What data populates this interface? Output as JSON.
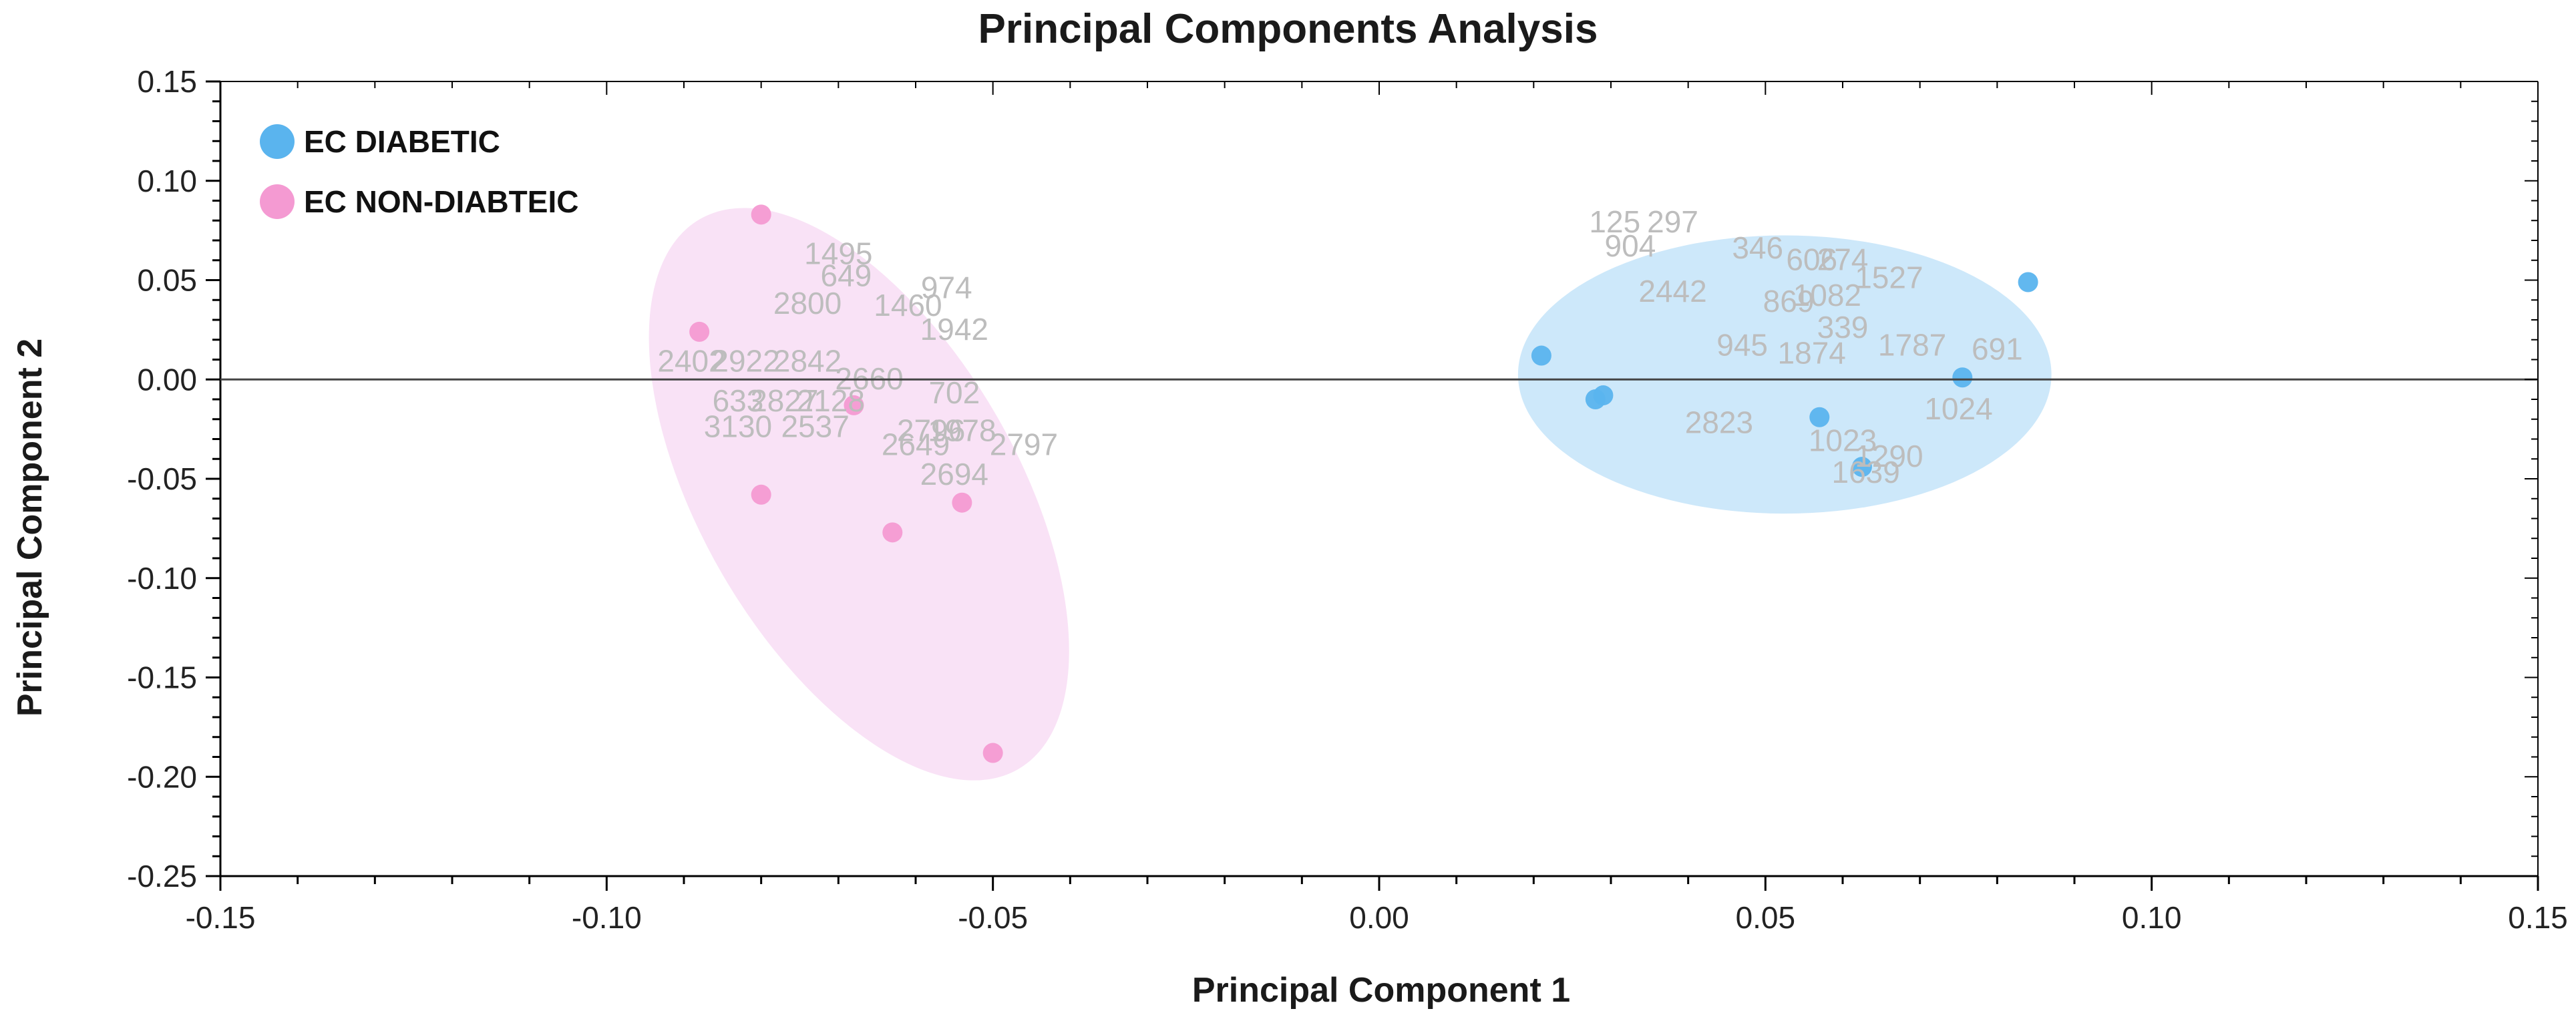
{
  "chart_data": {
    "type": "scatter",
    "title": "Principal Components Analysis",
    "xlabel": "Principal Component 1",
    "ylabel": "Principal Component 2",
    "xlim": [
      -0.15,
      0.15
    ],
    "ylim": [
      -0.25,
      0.15
    ],
    "x_ticks": [
      "-0.15",
      "-0.10",
      "-0.05",
      "0.00",
      "0.05",
      "0.10",
      "0.15"
    ],
    "y_ticks": [
      "0.15",
      "0.10",
      "0.05",
      "0.00",
      "-0.05",
      "-0.10",
      "-0.15",
      "-0.20",
      "-0.25"
    ],
    "grid": false,
    "legend_position": "top-left",
    "zero_line": true,
    "series": [
      {
        "name": "EC DIABETIC",
        "color": "#5ab4ee",
        "ellipse_color": "#cde8fa",
        "points": [
          {
            "x": 0.021,
            "y": 0.012
          },
          {
            "x": 0.028,
            "y": -0.01
          },
          {
            "x": 0.029,
            "y": -0.008
          },
          {
            "x": 0.057,
            "y": -0.019
          },
          {
            "x": 0.0625,
            "y": -0.044
          },
          {
            "x": 0.0755,
            "y": 0.001
          },
          {
            "x": 0.084,
            "y": 0.049
          }
        ]
      },
      {
        "name": "EC NON-DIABTEIC",
        "color": "#f49ad2",
        "ellipse_color": "#f9e2f6",
        "points": [
          {
            "x": -0.08,
            "y": 0.083
          },
          {
            "x": -0.088,
            "y": 0.024
          },
          {
            "x": -0.068,
            "y": -0.013
          },
          {
            "x": -0.08,
            "y": -0.058
          },
          {
            "x": -0.063,
            "y": -0.077
          },
          {
            "x": -0.054,
            "y": -0.062
          },
          {
            "x": -0.05,
            "y": -0.188
          }
        ]
      }
    ],
    "point_labels": [
      {
        "text": "1495",
        "x": -0.07,
        "y": 0.058
      },
      {
        "text": "649",
        "x": -0.069,
        "y": 0.047
      },
      {
        "text": "974",
        "x": -0.056,
        "y": 0.041
      },
      {
        "text": "1460",
        "x": -0.061,
        "y": 0.032
      },
      {
        "text": "1942",
        "x": -0.055,
        "y": 0.02
      },
      {
        "text": "2800",
        "x": -0.074,
        "y": 0.033
      },
      {
        "text": "2402",
        "x": -0.089,
        "y": 0.004
      },
      {
        "text": "2922",
        "x": -0.082,
        "y": 0.004
      },
      {
        "text": "2842",
        "x": -0.074,
        "y": 0.004
      },
      {
        "text": "2660",
        "x": -0.066,
        "y": -0.005
      },
      {
        "text": "702",
        "x": -0.055,
        "y": -0.012
      },
      {
        "text": "2827",
        "x": -0.077,
        "y": -0.016
      },
      {
        "text": "2128",
        "x": -0.071,
        "y": -0.016
      },
      {
        "text": "3130",
        "x": -0.083,
        "y": -0.029
      },
      {
        "text": "2537",
        "x": -0.073,
        "y": -0.029
      },
      {
        "text": "2796",
        "x": -0.058,
        "y": -0.031
      },
      {
        "text": "1978",
        "x": -0.054,
        "y": -0.031
      },
      {
        "text": "2649",
        "x": -0.06,
        "y": -0.038
      },
      {
        "text": "2797",
        "x": -0.046,
        "y": -0.038
      },
      {
        "text": "2694",
        "x": -0.055,
        "y": -0.053
      },
      {
        "text": "633",
        "x": -0.083,
        "y": -0.016,
        "highlight": true
      },
      {
        "text": "125",
        "x": 0.0305,
        "y": 0.074
      },
      {
        "text": "297",
        "x": 0.038,
        "y": 0.074
      },
      {
        "text": "904",
        "x": 0.0325,
        "y": 0.062
      },
      {
        "text": "346",
        "x": 0.049,
        "y": 0.061
      },
      {
        "text": "606",
        "x": 0.056,
        "y": 0.055
      },
      {
        "text": "274",
        "x": 0.06,
        "y": 0.055
      },
      {
        "text": "1527",
        "x": 0.066,
        "y": 0.046
      },
      {
        "text": "2442",
        "x": 0.038,
        "y": 0.039
      },
      {
        "text": "869",
        "x": 0.053,
        "y": 0.034
      },
      {
        "text": "1082",
        "x": 0.058,
        "y": 0.037
      },
      {
        "text": "339",
        "x": 0.06,
        "y": 0.021
      },
      {
        "text": "945",
        "x": 0.047,
        "y": 0.012
      },
      {
        "text": "1874",
        "x": 0.056,
        "y": 0.008
      },
      {
        "text": "1787",
        "x": 0.069,
        "y": 0.012
      },
      {
        "text": "691",
        "x": 0.08,
        "y": 0.01
      },
      {
        "text": "2823",
        "x": 0.044,
        "y": -0.027
      },
      {
        "text": "1024",
        "x": 0.075,
        "y": -0.02
      },
      {
        "text": "1023",
        "x": 0.06,
        "y": -0.036
      },
      {
        "text": "1290",
        "x": 0.066,
        "y": -0.044
      },
      {
        "text": "1639",
        "x": 0.063,
        "y": -0.052
      }
    ]
  }
}
